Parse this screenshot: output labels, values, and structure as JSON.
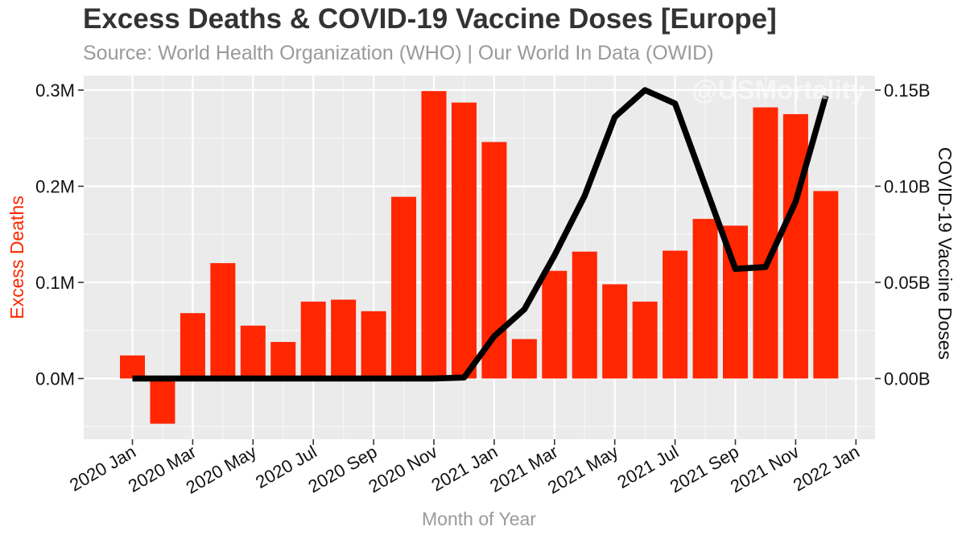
{
  "chart_data": {
    "type": "bar+line",
    "title": "Excess Deaths & COVID-19 Vaccine Doses [Europe]",
    "subtitle": "Source: World Health Organization (WHO) | Our World In Data (OWID)",
    "watermark": "@USMortality",
    "xlabel": "Month of Year",
    "ylabel_left": "Excess Deaths",
    "ylabel_right": "COVID-19 Vaccine Doses",
    "months": [
      "2020-01",
      "2020-02",
      "2020-03",
      "2020-04",
      "2020-05",
      "2020-06",
      "2020-07",
      "2020-08",
      "2020-09",
      "2020-10",
      "2020-11",
      "2020-12",
      "2021-01",
      "2021-02",
      "2021-03",
      "2021-04",
      "2021-05",
      "2021-06",
      "2021-07",
      "2021-08",
      "2021-09",
      "2021-10",
      "2021-11",
      "2021-12"
    ],
    "x_ticks": [
      "2020 Jan",
      "2020 Mar",
      "2020 May",
      "2020 Jul",
      "2020 Sep",
      "2020 Nov",
      "2021 Jan",
      "2021 Mar",
      "2021 May",
      "2021 Jul",
      "2021 Sep",
      "2021 Nov",
      "2022 Jan"
    ],
    "y_left_ticks": [
      "0.0M",
      "0.1M",
      "0.2M",
      "0.3M"
    ],
    "y_left_tick_values": [
      0,
      100000,
      200000,
      300000
    ],
    "y_right_ticks": [
      "0.00B",
      "0.05B",
      "0.10B",
      "0.15B"
    ],
    "y_right_tick_values": [
      0,
      50000000,
      100000000,
      150000000
    ],
    "ylim_left": [
      -50000,
      300000
    ],
    "series": [
      {
        "name": "Excess Deaths",
        "kind": "bar",
        "axis": "left",
        "color": "#ff2600",
        "values": [
          24000,
          -47000,
          68000,
          120000,
          55000,
          38000,
          80000,
          82000,
          70000,
          189000,
          299000,
          287000,
          246000,
          41000,
          112000,
          132000,
          98000,
          80000,
          133000,
          166000,
          159000,
          282000,
          275000,
          195000
        ]
      },
      {
        "name": "COVID-19 Vaccine Doses",
        "kind": "line",
        "axis": "right",
        "color": "#000000",
        "x": [
          "2020-01",
          "2020-02",
          "2020-03",
          "2020-04",
          "2020-05",
          "2020-06",
          "2020-07",
          "2020-08",
          "2020-09",
          "2020-10",
          "2020-11",
          "2020-12",
          "2021-01",
          "2021-02",
          "2021-03",
          "2021-04",
          "2021-05",
          "2021-06",
          "2021-07",
          "2021-08",
          "2021-09",
          "2021-10",
          "2021-11",
          "2021-12"
        ],
        "values": [
          0,
          0,
          0,
          0,
          0,
          0,
          0,
          0,
          0,
          0,
          0,
          500000,
          22000000,
          36000000,
          64000000,
          95000000,
          136000000,
          150000000,
          143000000,
          100000000,
          57000000,
          58000000,
          92000000,
          147000000
        ]
      }
    ],
    "colors": {
      "panel": "#ebebeb",
      "grid_major": "#ffffff",
      "grid_minor": "#f7f7f7",
      "left_axis_label": "#ff2600",
      "muted_text": "#9a9a9a",
      "title_text": "#333333"
    }
  }
}
